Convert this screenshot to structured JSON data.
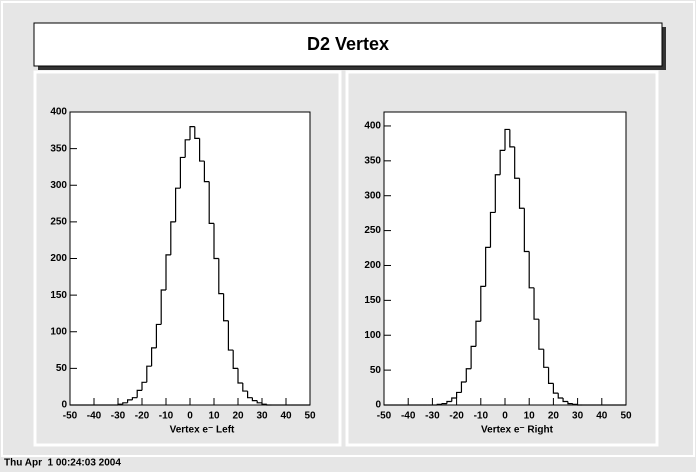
{
  "title": "D2 Vertex",
  "footer": "Thu Apr  1 00:24:03 2004",
  "chart_data": [
    {
      "type": "histogram",
      "xlabel": "Vertex e⁻ Left",
      "color": "#000000",
      "bins": [
        -50,
        -48,
        -46,
        -44,
        -42,
        -40,
        -38,
        -36,
        -34,
        -32,
        -30,
        -28,
        -26,
        -24,
        -22,
        -20,
        -18,
        -16,
        -14,
        -12,
        -10,
        -8,
        -6,
        -4,
        -2,
        0,
        2,
        4,
        6,
        8,
        10,
        12,
        14,
        16,
        18,
        20,
        22,
        24,
        26,
        28,
        30,
        32,
        34,
        36,
        38,
        40,
        42,
        44,
        46,
        48,
        50
      ],
      "counts": [
        0,
        0,
        0,
        0,
        0,
        0,
        0,
        0,
        0,
        0,
        1,
        3,
        7,
        10,
        20,
        31,
        53,
        78,
        110,
        157,
        205,
        250,
        296,
        338,
        362,
        380,
        364,
        333,
        305,
        248,
        200,
        152,
        115,
        75,
        50,
        30,
        19,
        10,
        6,
        3,
        1,
        0,
        0,
        0,
        0,
        0,
        0,
        0,
        0,
        0
      ],
      "xlim": [
        -50,
        50
      ],
      "ylim": [
        0,
        400
      ],
      "xticks": [
        -50,
        -40,
        -30,
        -20,
        -10,
        0,
        10,
        20,
        30,
        40,
        50
      ],
      "yticks": [
        0,
        50,
        100,
        150,
        200,
        250,
        300,
        350,
        400
      ]
    },
    {
      "type": "histogram",
      "xlabel": "Vertex e⁻ Right",
      "color": "#000000",
      "bins": [
        -50,
        -48,
        -46,
        -44,
        -42,
        -40,
        -38,
        -36,
        -34,
        -32,
        -30,
        -28,
        -26,
        -24,
        -22,
        -20,
        -18,
        -16,
        -14,
        -12,
        -10,
        -8,
        -6,
        -4,
        -2,
        0,
        2,
        4,
        6,
        8,
        10,
        12,
        14,
        16,
        18,
        20,
        22,
        24,
        26,
        28,
        30,
        32,
        34,
        36,
        38,
        40,
        42,
        44,
        46,
        48,
        50
      ],
      "counts": [
        0,
        0,
        0,
        0,
        0,
        0,
        0,
        0,
        0,
        0,
        0,
        1,
        2,
        5,
        10,
        18,
        33,
        52,
        84,
        120,
        170,
        226,
        276,
        330,
        365,
        395,
        370,
        325,
        282,
        220,
        168,
        123,
        80,
        54,
        31,
        17,
        10,
        5,
        2,
        1,
        0,
        0,
        0,
        0,
        0,
        0,
        0,
        0,
        0,
        0
      ],
      "xlim": [
        -50,
        50
      ],
      "ylim": [
        0,
        420
      ],
      "xticks": [
        -50,
        -40,
        -30,
        -20,
        -10,
        0,
        10,
        20,
        30,
        40,
        50
      ],
      "yticks": [
        0,
        50,
        100,
        150,
        200,
        250,
        300,
        350,
        400
      ]
    }
  ]
}
